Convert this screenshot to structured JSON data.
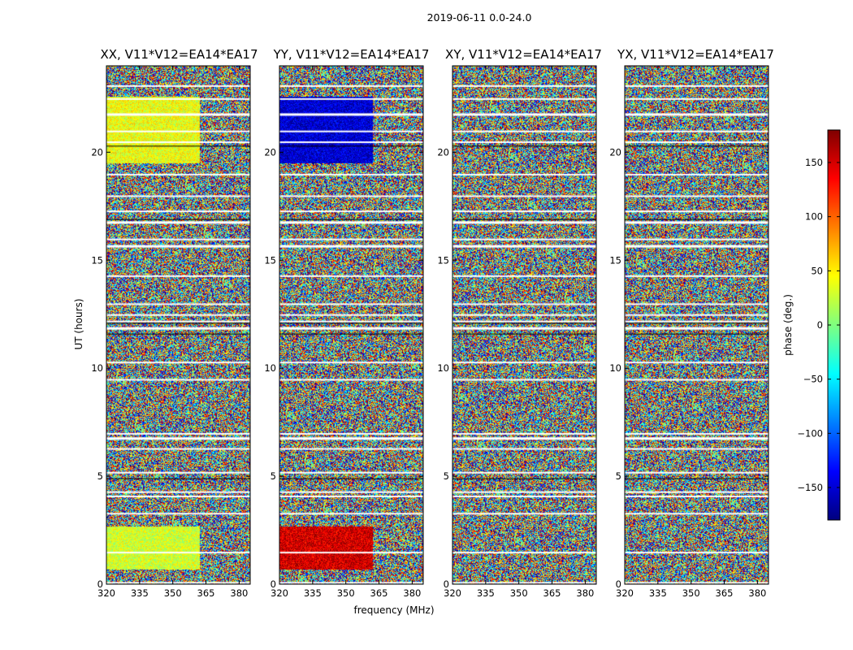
{
  "suptitle": "2019-06-11 0.0-24.0",
  "chart_data": {
    "type": "heatmap",
    "colormap": "jet",
    "xlabel": "frequency (MHz)",
    "ylabel": "UT (hours)",
    "xlim": [
      320,
      385
    ],
    "ylim": [
      0,
      24
    ],
    "xticks": [
      "320",
      "335",
      "350",
      "365",
      "380"
    ],
    "yticks": [
      "0",
      "5",
      "10",
      "15",
      "20"
    ],
    "colorbar": {
      "label": "phase (deg.)",
      "range": [
        -180,
        180
      ],
      "ticks": [
        "150",
        "100",
        "50",
        "0",
        "−50",
        "−100",
        "−150"
      ]
    },
    "panels": [
      {
        "title": "XX, V11*V12=EA14*EA17",
        "polarization": "XX"
      },
      {
        "title": "YY, V11*V12=EA14*EA17",
        "polarization": "YY"
      },
      {
        "title": "XY, V11*V12=EA14*EA17",
        "polarization": "XY"
      },
      {
        "title": "YX, V11*V12=EA14*EA17",
        "polarization": "YX"
      }
    ],
    "flagged_ut_hours": [
      0.1,
      1.5,
      3.3,
      4.1,
      4.3,
      5.2,
      6.3,
      6.8,
      7.0,
      9.5,
      10.3,
      11.9,
      12.2,
      12.5,
      13.0,
      14.3,
      15.7,
      16.0,
      16.8,
      17.3,
      18.0,
      19.0,
      20.5,
      21.0,
      21.8,
      22.5,
      23.1
    ],
    "coherent_bands": [
      {
        "panel": "XX",
        "ut_range": [
          0.7,
          2.7
        ],
        "freq_range": [
          320,
          362
        ],
        "phase_deg": 30
      },
      {
        "panel": "XX",
        "ut_range": [
          19.5,
          22.6
        ],
        "freq_range": [
          320,
          362
        ],
        "phase_deg": 40
      },
      {
        "panel": "YY",
        "ut_range": [
          0.7,
          2.7
        ],
        "freq_range": [
          320,
          362
        ],
        "phase_deg": 150
      },
      {
        "panel": "YY",
        "ut_range": [
          19.5,
          22.6
        ],
        "freq_range": [
          320,
          362
        ],
        "phase_deg": -150
      }
    ]
  }
}
